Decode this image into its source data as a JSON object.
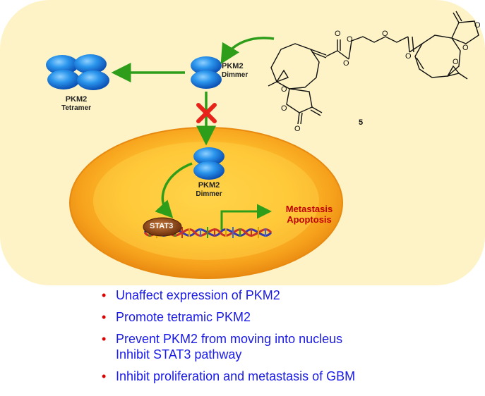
{
  "labels": {
    "tetramer_name": "PKM2",
    "tetramer_sub": "Tetramer",
    "dimer_top_name": "PKM2",
    "dimer_top_sub": "Dimmer",
    "dimer_nuc_name": "PKM2",
    "dimer_nuc_sub": "Dimmer",
    "compound_number": "5",
    "stat3": "STAT3",
    "outcome_1": "Metastasis",
    "outcome_2": "Apoptosis",
    "atom_o": "O"
  },
  "bullets": [
    {
      "lines": [
        "Unaffect expression of PKM2"
      ]
    },
    {
      "lines": [
        "Promote tetramic PKM2"
      ]
    },
    {
      "lines": [
        "Prevent PKM2 from moving into nucleus",
        "Inhibit STAT3 pathway"
      ]
    },
    {
      "lines": [
        "Inhibit proliferation and metastasis of GBM"
      ]
    }
  ],
  "colors": {
    "panel_bg": "#fdf3c6",
    "arrow": "#2e9e1a",
    "block_x": "#e8241a",
    "cell_outer": "#f4a21c",
    "nucleus_core": "#ffcf3d",
    "protein": "#1f8de6",
    "bullet_text": "#1a1ae6",
    "bullet_dot": "#e00000",
    "outcome_text": "#c00000"
  }
}
